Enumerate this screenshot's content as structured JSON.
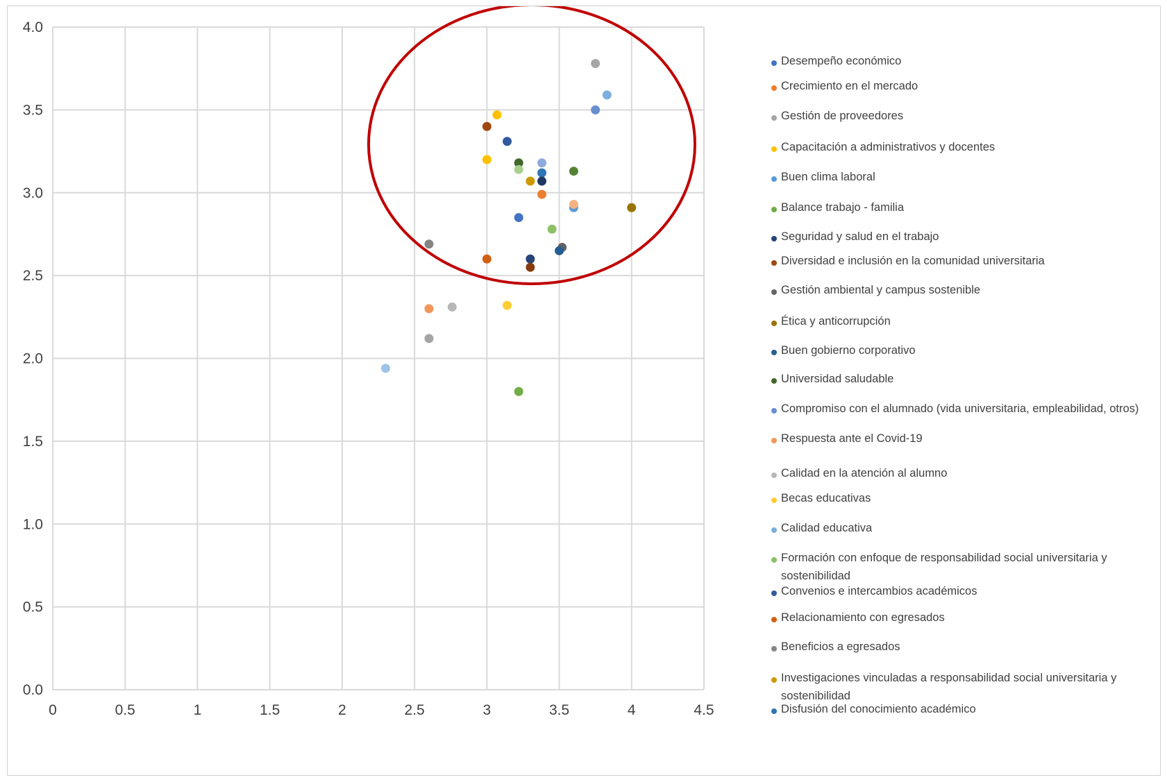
{
  "chart_data": {
    "type": "scatter",
    "title": "",
    "xlabel": "",
    "ylabel": "",
    "xlim": [
      0,
      4.5
    ],
    "ylim": [
      0,
      4.0
    ],
    "x_ticks": [
      "0",
      "0.5",
      "1",
      "1.5",
      "2",
      "2.5",
      "3",
      "3.5",
      "4",
      "4.5"
    ],
    "y_ticks": [
      "0.0",
      "0.5",
      "1.0",
      "1.5",
      "2.0",
      "2.5",
      "3.0",
      "3.5",
      "4.0"
    ],
    "grid": true,
    "legend_position": "right",
    "annotation": "red ellipse highlighting upper cluster",
    "annotation_color": "#c00000",
    "series": [
      {
        "name": "Desempeño económico",
        "color": "#4472c4",
        "x": [
          3.22
        ],
        "y": [
          2.85
        ]
      },
      {
        "name": "Crecimiento en el mercado",
        "color": "#ed7d31",
        "x": [
          3.38
        ],
        "y": [
          2.99
        ]
      },
      {
        "name": "Gestión de proveedores",
        "color": "#a5a5a5",
        "x": [
          3.75
        ],
        "y": [
          3.78
        ]
      },
      {
        "name": "Capacitación a administrativos y docentes",
        "color": "#ffc000",
        "x": [
          3.07
        ],
        "y": [
          3.47
        ]
      },
      {
        "name": "Buen clima laboral",
        "color": "#5b9bd5",
        "x": [
          3.6
        ],
        "y": [
          2.91
        ]
      },
      {
        "name": "Balance trabajo - familia",
        "color": "#70ad47",
        "x": [
          3.22
        ],
        "y": [
          1.8
        ]
      },
      {
        "name": "Seguridad y salud en el trabajo",
        "color": "#264478",
        "x": [
          3.3
        ],
        "y": [
          2.6
        ]
      },
      {
        "name": "Diversidad e inclusión en la comunidad universitaria",
        "color": "#9e480e",
        "x": [
          3.0
        ],
        "y": [
          3.4
        ]
      },
      {
        "name": "Gestión ambiental y campus sostenible",
        "color": "#636363",
        "x": [
          3.52
        ],
        "y": [
          2.67
        ]
      },
      {
        "name": "Ética y anticorrupción",
        "color": "#997300",
        "x": [
          4.0
        ],
        "y": [
          2.91
        ]
      },
      {
        "name": "Buen gobierno corporativo",
        "color": "#255e91",
        "x": [
          3.5
        ],
        "y": [
          2.65
        ]
      },
      {
        "name": "Universidad saludable",
        "color": "#43682b",
        "x": [
          3.22
        ],
        "y": [
          3.18
        ]
      },
      {
        "name": "Compromiso con el alumnado (vida universitaria, empleabilidad, otros)",
        "color": "#698ed0",
        "x": [
          3.75
        ],
        "y": [
          3.5
        ]
      },
      {
        "name": "Respuesta ante el Covid-19",
        "color": "#f1975a",
        "x": [
          2.6
        ],
        "y": [
          2.3
        ]
      },
      {
        "name": "Calidad en la atención al alumno",
        "color": "#b7b7b7",
        "x": [
          2.76
        ],
        "y": [
          2.31
        ]
      },
      {
        "name": "Becas educativas",
        "color": "#ffcd33",
        "x": [
          3.14
        ],
        "y": [
          2.32
        ]
      },
      {
        "name": "Calidad educativa",
        "color": "#7cafdd",
        "x": [
          3.83
        ],
        "y": [
          3.59
        ]
      },
      {
        "name": "Formación con enfoque de responsabilidad social universitaria y sostenibilidad",
        "color": "#8cc168",
        "x": [
          3.45
        ],
        "y": [
          2.78
        ]
      },
      {
        "name": "Convenios e intercambios académicos",
        "color": "#335aa1",
        "x": [
          3.14
        ],
        "y": [
          3.31
        ]
      },
      {
        "name": "Relacionamiento con egresados",
        "color": "#d26012",
        "x": [
          3.0
        ],
        "y": [
          2.6
        ]
      },
      {
        "name": "Beneficios a egresados",
        "color": "#848484",
        "x": [
          2.6
        ],
        "y": [
          2.69
        ]
      },
      {
        "name": "Investigaciones vinculadas a responsabilidad social universitaria y sostenibilidad",
        "color": "#cc9a00",
        "x": [
          3.3
        ],
        "y": [
          3.07
        ]
      },
      {
        "name": "Disfusión del conocimiento académico",
        "color": "#2e75b6",
        "x": [
          3.38
        ],
        "y": [
          3.12
        ]
      }
    ],
    "unlabeled_points": [
      {
        "color": "#f4b183",
        "x": 3.6,
        "y": 2.93
      },
      {
        "color": "#9dc3e6",
        "x": 2.3,
        "y": 1.94
      },
      {
        "color": "#a9d18e",
        "x": 3.22,
        "y": 3.14
      },
      {
        "color": "#8faadc",
        "x": 3.38,
        "y": 3.18
      },
      {
        "color": "#203864",
        "x": 3.38,
        "y": 3.07
      },
      {
        "color": "#548235",
        "x": 3.6,
        "y": 3.13
      },
      {
        "color": "#843c0c",
        "x": 3.3,
        "y": 2.55
      },
      {
        "color": "#a5a5a5",
        "x": 2.6,
        "y": 2.12
      },
      {
        "color": "#ffc000",
        "x": 3.0,
        "y": 3.2
      }
    ]
  }
}
